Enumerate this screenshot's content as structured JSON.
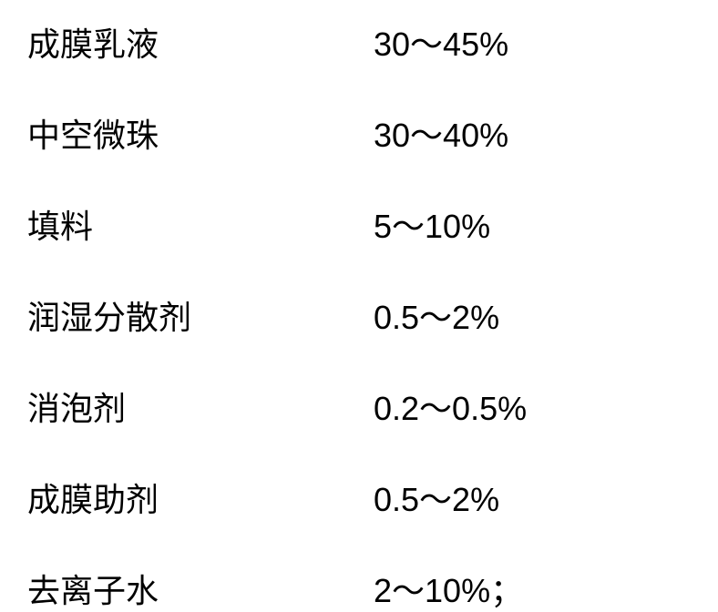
{
  "composition_table": {
    "type": "table",
    "columns": [
      "ingredient",
      "percentage_range"
    ],
    "rows": [
      {
        "label": "成膜乳液",
        "value": "30～45%"
      },
      {
        "label": "中空微珠",
        "value": "30～40%"
      },
      {
        "label": "填料",
        "value": "5～10%"
      },
      {
        "label": "润湿分散剂",
        "value": "0.5～2%"
      },
      {
        "label": "消泡剂",
        "value": "0.2～0.5%"
      },
      {
        "label": "成膜助剂",
        "value": "0.5～2%"
      },
      {
        "label": "去离子水",
        "value": "2～10%；"
      }
    ],
    "font_size": 36,
    "text_color": "#000000",
    "background_color": "#ffffff",
    "label_column_width": 380,
    "row_gap": 48
  }
}
